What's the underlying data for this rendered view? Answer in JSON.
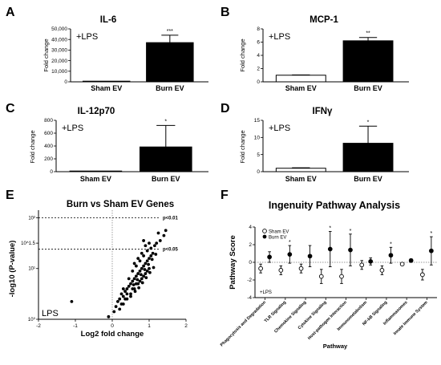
{
  "figure": {
    "panel_letters": [
      "A",
      "B",
      "C",
      "D",
      "E",
      "F"
    ],
    "lps_label": "+LPS"
  },
  "chart_data": [
    {
      "id": "A",
      "type": "bar",
      "title": "IL-6",
      "ylabel": "Fold change",
      "annotation": "+LPS",
      "categories": [
        "Sham EV",
        "Burn EV"
      ],
      "values": [
        1,
        37000
      ],
      "errors": [
        0,
        7000
      ],
      "colors": [
        "#ffffff",
        "#000000"
      ],
      "ylim": [
        0,
        50000
      ],
      "yticks": [
        0,
        10000,
        20000,
        30000,
        40000,
        50000
      ],
      "ytick_labels": [
        "0",
        "10,000",
        "20,000",
        "30,000",
        "40,000",
        "50,000"
      ],
      "significance": [
        "",
        "***"
      ]
    },
    {
      "id": "B",
      "type": "bar",
      "title": "MCP-1",
      "ylabel": "Fold change",
      "annotation": "+LPS",
      "categories": [
        "Sham EV",
        "Burn EV"
      ],
      "values": [
        1,
        6.2
      ],
      "errors": [
        0.05,
        0.5
      ],
      "colors": [
        "#ffffff",
        "#000000"
      ],
      "ylim": [
        0,
        8
      ],
      "yticks": [
        0,
        2,
        4,
        6,
        8
      ],
      "ytick_labels": [
        "0",
        "2",
        "4",
        "6",
        "8"
      ],
      "significance": [
        "",
        "**"
      ]
    },
    {
      "id": "C",
      "type": "bar",
      "title": "IL-12p70",
      "ylabel": "Fold change",
      "annotation": "+LPS",
      "categories": [
        "Sham EV",
        "Burn EV"
      ],
      "values": [
        1,
        385
      ],
      "errors": [
        0,
        335
      ],
      "colors": [
        "#ffffff",
        "#000000"
      ],
      "ylim": [
        0,
        800
      ],
      "yticks": [
        0,
        200,
        400,
        600,
        800
      ],
      "ytick_labels": [
        "0",
        "200",
        "400",
        "600",
        "800"
      ],
      "significance": [
        "",
        "*"
      ]
    },
    {
      "id": "D",
      "type": "bar",
      "title": "IFNγ",
      "ylabel": "Fold change",
      "annotation": "+LPS",
      "categories": [
        "Sham EV",
        "Burn EV"
      ],
      "values": [
        1,
        8.3
      ],
      "errors": [
        0.15,
        5.0
      ],
      "colors": [
        "#ffffff",
        "#000000"
      ],
      "ylim": [
        0,
        15
      ],
      "yticks": [
        0,
        5,
        10,
        15
      ],
      "ytick_labels": [
        "0",
        "5",
        "10",
        "15"
      ],
      "significance": [
        "",
        "*"
      ]
    },
    {
      "id": "E",
      "type": "scatter",
      "title": "Burn vs Sham EV Genes",
      "xlabel": "Log2 fold change",
      "ylabel": "-log10 (P-value)",
      "annotation": "LPS",
      "xlim": [
        -2,
        2
      ],
      "xticks": [
        -2,
        -1,
        0,
        1,
        2
      ],
      "yticks_log": [
        0,
        1,
        1.5,
        2
      ],
      "ytick_labels": [
        "10⁰",
        "10¹",
        "10^1.5",
        "10²"
      ],
      "threshold_labels": [
        "p<0.01",
        "p<0.05"
      ],
      "points": [
        [
          -1.1,
          0.35
        ],
        [
          -0.1,
          0.05
        ],
        [
          0.05,
          0.15
        ],
        [
          0.1,
          0.25
        ],
        [
          0.15,
          0.35
        ],
        [
          0.2,
          0.4
        ],
        [
          0.25,
          0.5
        ],
        [
          0.3,
          0.45
        ],
        [
          0.35,
          0.55
        ],
        [
          0.4,
          0.6
        ],
        [
          0.45,
          0.65
        ],
        [
          0.5,
          0.7
        ],
        [
          0.55,
          0.75
        ],
        [
          0.6,
          0.8
        ],
        [
          0.65,
          0.85
        ],
        [
          0.7,
          0.9
        ],
        [
          0.75,
          0.95
        ],
        [
          0.8,
          1.0
        ],
        [
          0.85,
          1.05
        ],
        [
          0.9,
          1.1
        ],
        [
          0.95,
          1.15
        ],
        [
          1.0,
          1.2
        ],
        [
          1.05,
          1.25
        ],
        [
          1.1,
          1.3
        ],
        [
          0.3,
          0.3
        ],
        [
          0.4,
          0.4
        ],
        [
          0.5,
          0.5
        ],
        [
          0.6,
          0.6
        ],
        [
          0.7,
          0.7
        ],
        [
          0.8,
          0.8
        ],
        [
          0.9,
          0.9
        ],
        [
          1.0,
          1.0
        ],
        [
          0.55,
          0.95
        ],
        [
          0.65,
          1.05
        ],
        [
          0.75,
          1.15
        ],
        [
          0.85,
          1.25
        ],
        [
          0.95,
          1.35
        ],
        [
          1.05,
          1.4
        ],
        [
          1.15,
          1.45
        ],
        [
          0.6,
          1.1
        ],
        [
          0.7,
          1.2
        ],
        [
          0.8,
          1.3
        ],
        [
          0.9,
          1.45
        ],
        [
          1.0,
          1.5
        ],
        [
          1.2,
          1.5
        ],
        [
          1.3,
          1.55
        ],
        [
          1.4,
          1.65
        ],
        [
          1.45,
          1.75
        ],
        [
          0.85,
          1.55
        ],
        [
          1.25,
          1.7
        ],
        [
          0.3,
          0.6
        ],
        [
          0.45,
          0.8
        ],
        [
          0.55,
          0.6
        ],
        [
          0.65,
          0.7
        ],
        [
          0.75,
          0.75
        ],
        [
          0.85,
          0.85
        ],
        [
          0.95,
          0.95
        ],
        [
          0.2,
          0.2
        ],
        [
          0.35,
          0.4
        ],
        [
          0.5,
          0.45
        ],
        [
          0.62,
          0.55
        ],
        [
          0.72,
          0.62
        ],
        [
          0.82,
          0.72
        ],
        [
          0.92,
          0.82
        ],
        [
          1.02,
          0.92
        ],
        [
          1.12,
          1.02
        ],
        [
          0.25,
          0.3
        ],
        [
          0.4,
          0.5
        ],
        [
          0.58,
          0.68
        ],
        [
          0.68,
          0.78
        ],
        [
          0.78,
          0.88
        ],
        [
          0.88,
          0.98
        ],
        [
          0.98,
          1.08
        ],
        [
          1.08,
          1.18
        ],
        [
          1.18,
          1.28
        ]
      ]
    },
    {
      "id": "F",
      "type": "scatter",
      "title": "Ingenuity Pathway Analysis",
      "xlabel": "Pathway",
      "ylabel": "Pathway Score",
      "annotation": "+LPS",
      "ylim": [
        -4,
        4
      ],
      "yticks": [
        -4,
        -2,
        0,
        2,
        4
      ],
      "legend": [
        "Sham EV",
        "Burn EV"
      ],
      "categories": [
        "Phagocytosis and Degradation",
        "TLR Signaling",
        "Chemokine Signaling",
        "Cytokine Signaling",
        "Host-pathogen Interaction",
        "Immunometabolism",
        "NF-kB Signaling",
        "Inflammasomes",
        "Innate Immune System"
      ],
      "series": [
        {
          "name": "Sham EV",
          "values": [
            -0.7,
            -0.9,
            -0.7,
            -1.6,
            -1.6,
            -0.3,
            -0.9,
            -0.2,
            -1.4
          ],
          "errors": [
            0.5,
            0.5,
            0.5,
            0.8,
            0.8,
            0.5,
            0.5,
            0.1,
            0.6
          ]
        },
        {
          "name": "Burn EV",
          "values": [
            0.6,
            0.9,
            0.7,
            1.5,
            1.4,
            0.1,
            0.8,
            0.2,
            1.3
          ],
          "errors": [
            0.6,
            1.0,
            1.2,
            2.0,
            1.8,
            0.4,
            0.9,
            0.2,
            1.6
          ]
        }
      ],
      "significance": [
        "",
        "*",
        "",
        "*",
        "*",
        "",
        "*",
        "",
        "*"
      ]
    }
  ]
}
